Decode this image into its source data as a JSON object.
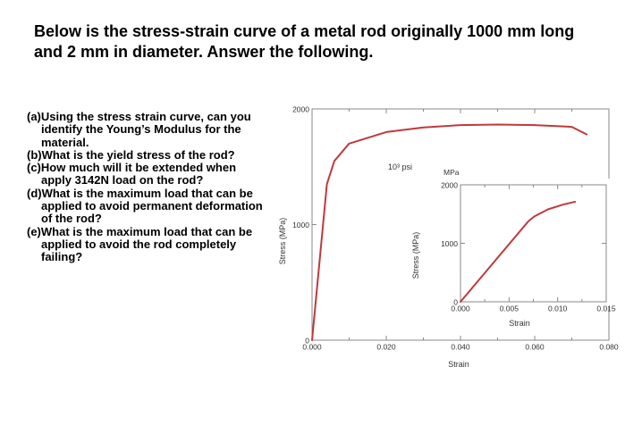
{
  "header": {
    "title_line1": "Below is the stress-strain curve of a metal rod originally 1000 mm long",
    "title_line2": "and 2 mm in diameter. Answer the following."
  },
  "questions": [
    "(a)Using the stress strain curve, can you identify the Young’s Modulus for the material.",
    "(b)What is the yield stress of the rod?",
    "(c)How much will it be extended when apply 3142N load on the rod?",
    "(d)What is the maximum load that can be applied to avoid permanent deformation of the rod?",
    "(e)What is the maximum load that can be applied to avoid the rod completely failing?"
  ],
  "chart_data": [
    {
      "type": "line",
      "xlabel": "Strain",
      "ylabel": "Stress (MPa)",
      "annotation": "10³ psi",
      "x_ticks": [
        "0.000",
        "0.020",
        "0.040",
        "0.060",
        "0.080"
      ],
      "y_ticks": [
        "0",
        "1000",
        "2000"
      ],
      "xlim": [
        0,
        0.08
      ],
      "ylim": [
        0,
        2000
      ],
      "series": [
        {
          "color": "#c0393b",
          "x": [
            0,
            0.004,
            0.006,
            0.01,
            0.02,
            0.03,
            0.04,
            0.05,
            0.06,
            0.07,
            0.074
          ],
          "y": [
            0,
            1350,
            1550,
            1700,
            1800,
            1840,
            1860,
            1865,
            1860,
            1845,
            1780
          ]
        }
      ]
    },
    {
      "type": "line",
      "xlabel": "Strain",
      "ylabel": "Stress (MPa)",
      "unit_label": "MPa",
      "x_ticks": [
        "0.000",
        "0.005",
        "0.010",
        "0.015"
      ],
      "y_ticks": [
        "0",
        "1000",
        "2000"
      ],
      "xlim": [
        0,
        0.015
      ],
      "ylim": [
        0,
        2000
      ],
      "series": [
        {
          "color": "#c0393b",
          "x": [
            0,
            0.007,
            0.0076,
            0.009,
            0.0105,
            0.0115,
            0.0118
          ],
          "y": [
            0,
            1380,
            1460,
            1580,
            1660,
            1700,
            1710
          ]
        }
      ]
    }
  ]
}
